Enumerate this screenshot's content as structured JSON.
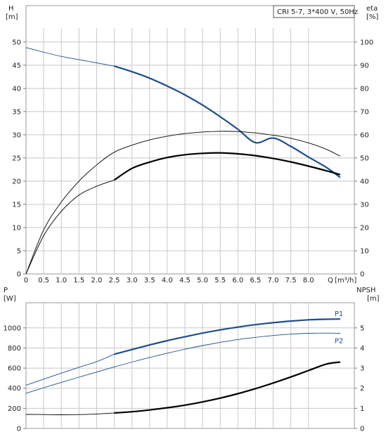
{
  "chart_data": [
    {
      "type": "line",
      "legend": "CRI 5-7, 3*400 V, 50Hz",
      "left_axis": {
        "unit_name": "H",
        "unit": "[m]",
        "ticks": [
          0,
          5,
          10,
          15,
          20,
          25,
          30,
          35,
          40,
          45,
          50
        ],
        "ylim": [
          0,
          53
        ]
      },
      "right_axis": {
        "unit_name": "eta",
        "unit": "[%]",
        "ticks": [
          0,
          10,
          20,
          30,
          40,
          50,
          60,
          70,
          80,
          90,
          100
        ],
        "ylim": [
          0,
          106
        ]
      },
      "x_axis": {
        "unit_name": "Q",
        "unit": "[m³/h]",
        "ticks": [
          0,
          0.5,
          1.0,
          1.5,
          2.0,
          2.5,
          3.0,
          3.5,
          4.0,
          4.5,
          5.0,
          5.5,
          6.0,
          6.5,
          7.0,
          7.5,
          8.0
        ],
        "tick_labels": [
          "0",
          "0.5",
          "1.0",
          "1.5",
          "2.0",
          "2.5",
          "3.0",
          "3.5",
          "4.0",
          "4.5",
          "5.0",
          "5.5",
          "6.0",
          "6.5",
          "7.0",
          "7.5",
          "8.0"
        ],
        "xlim": [
          0,
          9.3
        ]
      },
      "grid": true,
      "series": [
        {
          "axis": "left",
          "color": "#1f4e8c",
          "thin_until": 2.5,
          "x": [
            0,
            0.5,
            1.0,
            1.5,
            2.0,
            2.5,
            3.0,
            3.5,
            4.0,
            4.5,
            5.0,
            5.5,
            6.0,
            6.5,
            7.0,
            7.5,
            8.0,
            8.5,
            8.9
          ],
          "y": [
            48.8,
            47.8,
            46.9,
            46.2,
            45.5,
            44.8,
            43.6,
            42.2,
            40.5,
            38.6,
            36.4,
            33.9,
            31.2,
            28.3,
            29.3,
            27.5,
            25.2,
            23.0,
            20.8
          ]
        },
        {
          "axis": "right",
          "color": "#000000",
          "thin_until": 9.0,
          "x": [
            0,
            0.5,
            1.0,
            1.5,
            2.0,
            2.5,
            3.0,
            3.5,
            4.0,
            4.5,
            5.0,
            5.5,
            6.0,
            6.5,
            7.0,
            7.5,
            8.0,
            8.5,
            8.9
          ],
          "y": [
            0,
            19,
            31,
            40,
            47,
            52.5,
            55.5,
            57.8,
            59.4,
            60.5,
            61.2,
            61.5,
            61.4,
            60.8,
            59.8,
            58.5,
            56.5,
            53.8,
            50.8
          ]
        },
        {
          "axis": "right",
          "color": "#000000",
          "thin_until": 2.5,
          "x": [
            0,
            0.5,
            1.0,
            1.5,
            2.0,
            2.5,
            3.0,
            3.5,
            4.0,
            4.5,
            5.0,
            5.5,
            6.0,
            6.5,
            7.0,
            7.5,
            8.0,
            8.5,
            8.9
          ],
          "y": [
            0,
            16.5,
            27,
            34,
            37.8,
            40.5,
            45.5,
            48.2,
            50.2,
            51.4,
            52.0,
            52.2,
            51.8,
            51.0,
            49.8,
            48.3,
            46.5,
            44.5,
            42.8
          ]
        }
      ]
    },
    {
      "type": "line",
      "left_axis": {
        "unit_name": "P",
        "unit": "[W]",
        "ticks": [
          0,
          200,
          400,
          600,
          800,
          1000
        ],
        "ylim": [
          0,
          1250
        ]
      },
      "right_axis": {
        "unit_name": "NPSH",
        "unit": "[m]",
        "ticks": [
          0,
          1,
          2,
          3,
          4,
          5
        ],
        "ylim": [
          0,
          6.25
        ]
      },
      "x_axis": {
        "xlim": [
          0,
          9.3
        ]
      },
      "grid": true,
      "series": [
        {
          "name": "P1",
          "axis": "left",
          "color": "#1f4e8c",
          "thin_until": 2.5,
          "x": [
            0,
            0.5,
            1.0,
            1.5,
            2.0,
            2.5,
            3.0,
            3.5,
            4.0,
            4.5,
            5.0,
            5.5,
            6.0,
            6.5,
            7.0,
            7.5,
            8.0,
            8.5,
            8.9
          ],
          "y": [
            430,
            490,
            550,
            608,
            664,
            738,
            784,
            830,
            873,
            912,
            948,
            980,
            1008,
            1032,
            1052,
            1068,
            1080,
            1086,
            1088
          ]
        },
        {
          "name": "P2",
          "axis": "left",
          "color": "#1f4e8c",
          "thin_until": 9.0,
          "x": [
            0,
            0.5,
            1.0,
            1.5,
            2.0,
            2.5,
            3.0,
            3.5,
            4.0,
            4.5,
            5.0,
            5.5,
            6.0,
            6.5,
            7.0,
            7.5,
            8.0,
            8.5,
            8.9
          ],
          "y": [
            350,
            405,
            458,
            510,
            560,
            612,
            660,
            706,
            748,
            788,
            824,
            856,
            884,
            906,
            924,
            938,
            946,
            948,
            946
          ]
        },
        {
          "axis": "right",
          "color": "#000000",
          "thin_until": 2.5,
          "x": [
            0,
            0.5,
            1.0,
            1.5,
            2.0,
            2.5,
            3.0,
            3.5,
            4.0,
            4.5,
            5.0,
            5.5,
            6.0,
            6.5,
            7.0,
            7.5,
            8.0,
            8.5,
            8.9
          ],
          "y": [
            0.7,
            0.69,
            0.68,
            0.69,
            0.72,
            0.77,
            0.83,
            0.92,
            1.03,
            1.16,
            1.32,
            1.51,
            1.73,
            1.98,
            2.26,
            2.56,
            2.88,
            3.2,
            3.3
          ]
        }
      ]
    }
  ]
}
